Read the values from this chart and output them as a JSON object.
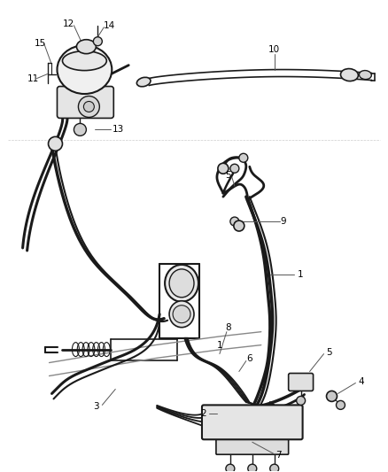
{
  "bg_color": "#ffffff",
  "line_color": "#1a1a1a",
  "label_color": "#000000",
  "fig_width": 4.38,
  "fig_height": 5.33,
  "dpi": 100,
  "label_fontsize": 7.5
}
